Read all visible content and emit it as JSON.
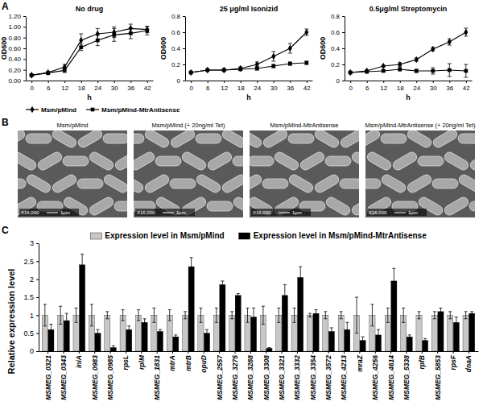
{
  "chart_data": [
    {
      "type": "line",
      "title": "No drug",
      "x_label": "h",
      "y_label": "OD600",
      "categories": [
        "0",
        "6",
        "12",
        "18",
        "24",
        "30",
        "36",
        "42"
      ],
      "series": [
        {
          "name": "Msm/pMind",
          "color": "#000000",
          "marker": "diamond",
          "line_style": "solid",
          "values": [
            0.1,
            0.15,
            0.25,
            0.75,
            0.87,
            0.9,
            0.97,
            0.95
          ],
          "errors": [
            0.01,
            0.02,
            0.05,
            0.12,
            0.1,
            0.1,
            0.08,
            0.06
          ]
        },
        {
          "name": "Msm/pMind-MtrAntisense",
          "color": "#000000",
          "marker": "square",
          "line_style": "solid",
          "values": [
            0.1,
            0.14,
            0.19,
            0.62,
            0.75,
            0.85,
            0.88,
            0.93
          ],
          "errors": [
            0.01,
            0.02,
            0.04,
            0.06,
            0.1,
            0.12,
            0.1,
            0.08
          ]
        }
      ],
      "ylim": [
        0,
        1.2
      ],
      "yticks": [
        {
          "value": 0,
          "label": "0.00"
        },
        {
          "value": 0.2,
          "label": "0.20"
        },
        {
          "value": 0.4,
          "label": "0.40"
        },
        {
          "value": 0.6,
          "label": "0.60"
        },
        {
          "value": 0.8,
          "label": "0.80"
        },
        {
          "value": 1,
          "label": "1.00"
        },
        {
          "value": 1.2,
          "label": "1.20"
        }
      ],
      "grid": false,
      "legend": "bottom"
    },
    {
      "type": "line",
      "title": "25 μg/ml Isonizid",
      "x_label": "h",
      "y_label": "OD600",
      "categories": [
        "0",
        "6",
        "12",
        "18",
        "24",
        "30",
        "36",
        "42"
      ],
      "series": [
        {
          "color": "#000000",
          "marker": "diamond",
          "line_style": "solid",
          "values": [
            0.1,
            0.13,
            0.13,
            0.15,
            0.2,
            0.3,
            0.4,
            0.6
          ],
          "errors": [
            0.01,
            0.01,
            0.01,
            0.02,
            0.03,
            0.06,
            0.06,
            0.04
          ]
        },
        {
          "color": "#000000",
          "marker": "square",
          "line_style": "solid",
          "values": [
            0.1,
            0.13,
            0.13,
            0.14,
            0.15,
            0.18,
            0.21,
            0.22
          ],
          "errors": [
            0.01,
            0.01,
            0.01,
            0.01,
            0.02,
            0.02,
            0.02,
            0.02
          ]
        }
      ],
      "ylim": [
        0,
        0.8
      ],
      "yticks": [
        0,
        0.2,
        0.4,
        0.6,
        0.8
      ],
      "grid": false
    },
    {
      "type": "line",
      "title": "0.5μg/ml Streptomycin",
      "x_label": "h",
      "y_label": "OD600",
      "categories": [
        "0",
        "6",
        "12",
        "18",
        "24",
        "30",
        "36",
        "42"
      ],
      "series": [
        {
          "color": "#000000",
          "marker": "diamond",
          "line_style": "solid",
          "values": [
            0.1,
            0.12,
            0.18,
            0.2,
            0.26,
            0.39,
            0.48,
            0.6
          ],
          "errors": [
            0.01,
            0.01,
            0.01,
            0.02,
            0.02,
            0.02,
            0.04,
            0.05
          ]
        },
        {
          "color": "#000000",
          "marker": "square",
          "line_style": "solid",
          "values": [
            0.1,
            0.11,
            0.12,
            0.14,
            0.12,
            0.12,
            0.13,
            0.12
          ],
          "errors": [
            0.01,
            0.01,
            0.01,
            0.02,
            0.02,
            0.04,
            0.08,
            0.08
          ]
        }
      ],
      "ylim": [
        0,
        0.8
      ],
      "yticks": [
        0,
        0.2,
        0.4,
        0.6,
        0.8
      ],
      "grid": false
    },
    {
      "type": "bar",
      "y_label": "Relative expression level",
      "categories": [
        "MSMEG_0321",
        "MSMEG_0343",
        "iniA",
        "MSMEG_0983",
        "MSMEG_0985",
        "rpsL",
        "rplM",
        "MSMEG_1831",
        "mtrA",
        "mtrB",
        "opuD",
        "MSMEG_2557",
        "MSMEG_3275",
        "MSMEG_3288",
        "MSMEG_3308",
        "MSMEG_3321",
        "MSMEG_3332",
        "MSMEG_3354",
        "MSMEG_3572",
        "MSMEG_4213",
        "mraZ",
        "MSMEG_4256",
        "MSMEG_4614",
        "MSMEG_5338",
        "rpfB",
        "MSMEG_5853",
        "rpsF",
        "dnaA"
      ],
      "series": [
        {
          "name": "Expression level in Msm/pMind",
          "color": "#c8c8c8",
          "values": [
            1,
            1,
            1,
            1,
            1,
            1,
            1,
            1,
            1,
            1,
            1,
            1,
            1,
            1,
            1,
            1,
            1,
            1,
            1,
            1,
            1,
            1,
            1,
            1,
            1,
            1,
            1,
            1
          ],
          "errors": [
            0.3,
            0.25,
            0.2,
            0.3,
            0.1,
            0.15,
            0.15,
            0.2,
            0.15,
            0.1,
            0.2,
            0.2,
            0.1,
            0.2,
            0.25,
            0.2,
            0.2,
            0.05,
            0.1,
            0.1,
            0.5,
            0.3,
            0.2,
            0.2,
            0.1,
            0.1,
            0.1,
            0.1
          ]
        },
        {
          "name": "Expression level in Msm/pMind-MtrAntisense",
          "color": "#000000",
          "values": [
            0.6,
            0.85,
            2.4,
            0.5,
            0.1,
            0.6,
            0.8,
            0.55,
            0.4,
            2.35,
            0.5,
            1.85,
            1.55,
            0.95,
            0.08,
            1.55,
            2.05,
            1.05,
            0.55,
            0.6,
            0.3,
            0.45,
            1.95,
            0.4,
            0.3,
            1.1,
            0.8,
            1.05
          ],
          "errors": [
            0.15,
            0.2,
            0.3,
            0.1,
            0.05,
            0.1,
            0.1,
            0.05,
            0.05,
            0.25,
            0.1,
            0.1,
            0.05,
            0.25,
            0.02,
            0.3,
            0.3,
            0.1,
            0.1,
            0.2,
            0.1,
            0.15,
            0.35,
            0.05,
            0.05,
            0.1,
            0.15,
            0.05
          ]
        }
      ],
      "ylim": [
        0,
        3
      ],
      "yticks": [
        0,
        0.5,
        1,
        1.5,
        2,
        2.5,
        3
      ],
      "grid": false,
      "legend": "top"
    }
  ],
  "panel_labels": [
    "A",
    "B",
    "C"
  ],
  "micrographs": {
    "captions": [
      "Msm/pMind",
      "Msm/pMind (+ 20ng/ml Tet)",
      "Msm/pMind-MtrAntisense",
      "Msm/pMind-MtrAntisense (+ 20ng/ml Tet)"
    ],
    "magnification": "X16,000",
    "scale_bar": "1μm"
  }
}
